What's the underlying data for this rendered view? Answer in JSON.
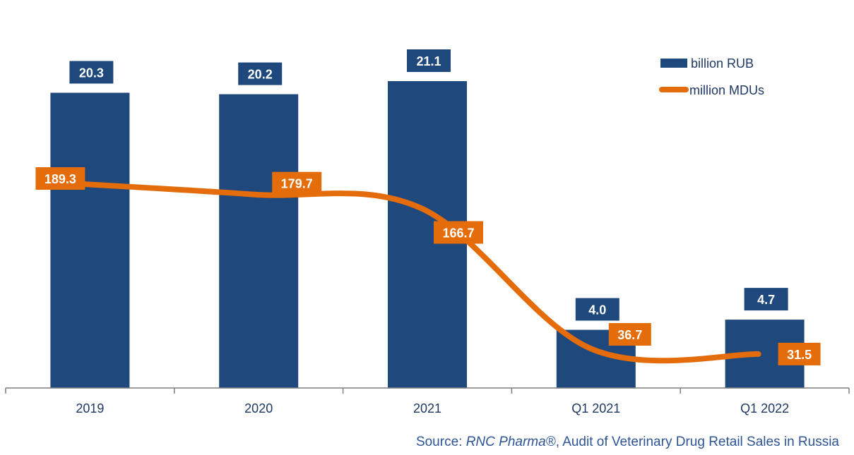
{
  "chart_data": {
    "type": "bar",
    "categories": [
      "2019",
      "2020",
      "2021",
      "Q1 2021",
      "Q1 2022"
    ],
    "series": [
      {
        "name": "billion RUB",
        "type": "bar",
        "values": [
          20.3,
          20.2,
          21.1,
          4.0,
          4.7
        ],
        "labels": [
          "20.3",
          "20.2",
          "21.1",
          "4.0",
          "4.7"
        ],
        "color": "#1f497d"
      },
      {
        "name": "million MDUs",
        "type": "line",
        "values": [
          189.3,
          179.7,
          166.7,
          36.7,
          31.5
        ],
        "labels": [
          "189.3",
          "179.7",
          "166.7",
          "36.7",
          "31.5"
        ],
        "color": "#e46c0a",
        "smooth": true
      }
    ],
    "legend_position": "top-right",
    "grid": false
  },
  "source": {
    "prefix": "Source: ",
    "brand": "RNC Pharma®",
    "rest": ", Audit of Veterinary Drug Retail Sales in Russia"
  }
}
